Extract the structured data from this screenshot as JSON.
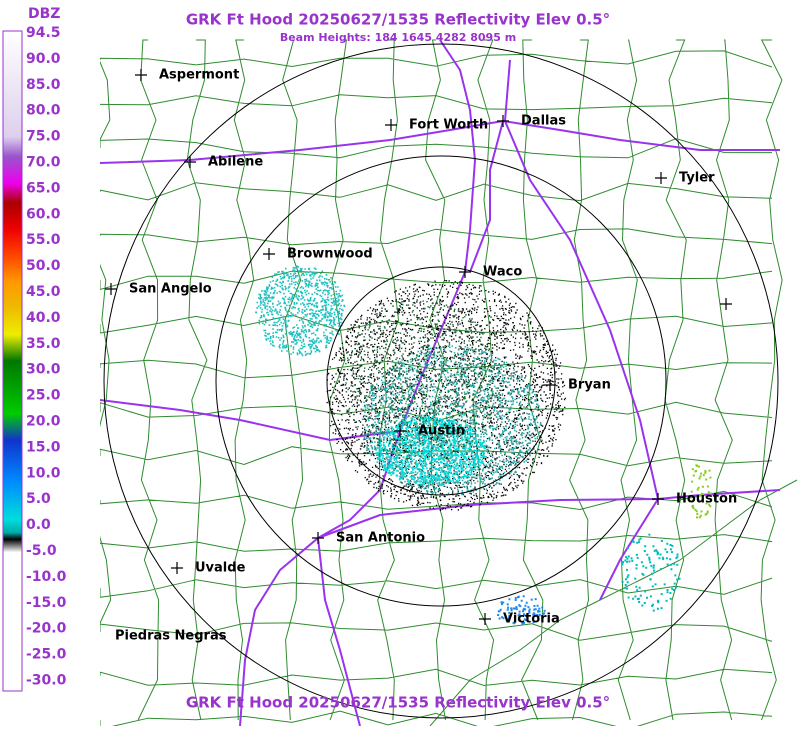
{
  "header": {
    "title": "GRK Ft Hood 20250627/1535 Reflectivity Elev 0.5°",
    "subtitle": "Beam Heights: 184 1645 4282 8095 m"
  },
  "footer": {
    "title": "GRK Ft Hood 20250627/1535 Reflectivity Elev 0.5°"
  },
  "legend": {
    "title": "DBZ",
    "labels": [
      "94.5",
      "90.0",
      "85.0",
      "80.0",
      "75.0",
      "70.0",
      "65.0",
      "60.0",
      "55.0",
      "50.0",
      "45.0",
      "40.0",
      "35.0",
      "30.0",
      "25.0",
      "20.0",
      "15.0",
      "10.0",
      "5.0",
      "0.0",
      "-5.0",
      "-10.0",
      "-15.0",
      "-20.0",
      "-25.0",
      "-30.0"
    ]
  },
  "cities": [
    "Aspermont",
    "Fort Worth",
    "Dallas",
    "Abilene",
    "Tyler",
    "Brownwood",
    "Waco",
    "San Angelo",
    "Bryan",
    "Austin",
    "Houston",
    "San Antonio",
    "Uvalde",
    "Victoria",
    "Piedras Negras"
  ]
}
